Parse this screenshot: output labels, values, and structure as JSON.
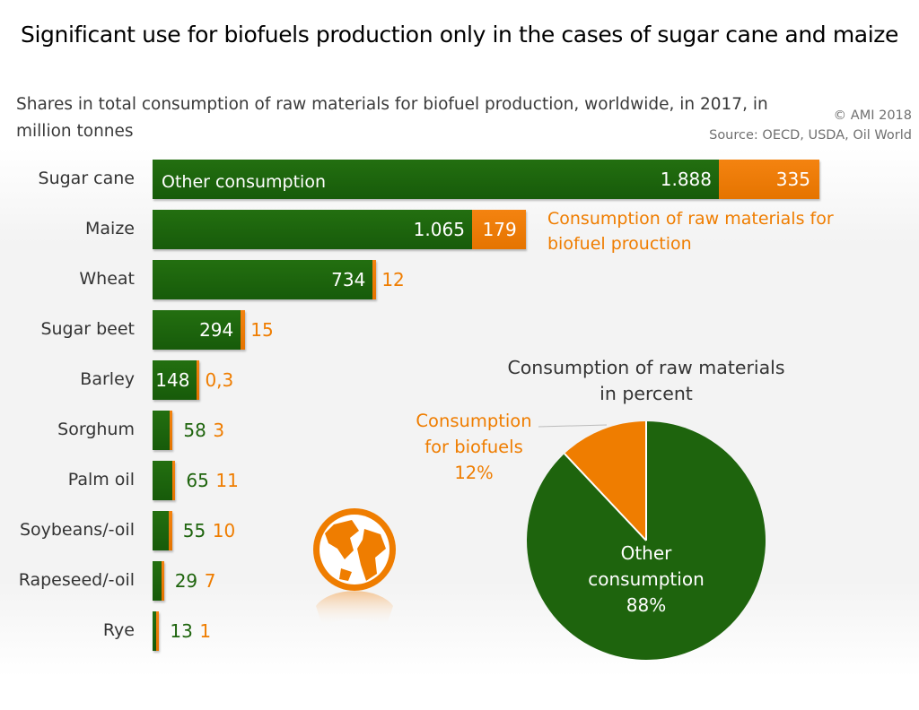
{
  "header": {
    "title": "Significant use for biofuels production only in the cases of sugar cane and maize",
    "subtitle": "Shares in total consumption of raw materials for biofuel production, worldwide, in 2017, in million tonnes",
    "credit_line1": "© AMI 2018",
    "credit_line2": "Source: OECD, USDA, Oil World"
  },
  "colors": {
    "other": "#1e640d",
    "biofuel": "#ef7d00"
  },
  "icons": {
    "globe": "globe-icon"
  },
  "chart_data": [
    {
      "type": "bar",
      "orientation": "horizontal",
      "stacked": true,
      "categories": [
        "Sugar cane",
        "Maize",
        "Wheat",
        "Sugar beet",
        "Barley",
        "Sorghum",
        "Palm oil",
        "Soybeans/-oil",
        "Rapeseed/-oil",
        "Rye"
      ],
      "series": [
        {
          "name": "Other consumption",
          "values": [
            1888,
            1065,
            734,
            294,
            148,
            58,
            65,
            55,
            29,
            13
          ],
          "labels": [
            "1.888",
            "1.065",
            "734",
            "294",
            "148",
            "58",
            "65",
            "55",
            "29",
            "13"
          ]
        },
        {
          "name": "Consumption of raw materials for biofuel prouction",
          "values": [
            335,
            179,
            12,
            15,
            0.3,
            3,
            11,
            10,
            7,
            1
          ],
          "labels": [
            "335",
            "179",
            "12",
            "15",
            "0,3",
            "3",
            "11",
            "10",
            "7",
            "1"
          ]
        }
      ],
      "inner_label": "Other consumption",
      "legend_label": "Consumption of raw materials for biofuel prouction"
    },
    {
      "type": "pie",
      "title": "Consumption of raw materials in percent",
      "slices": [
        {
          "name": "Consumption for biofuels",
          "value": 12,
          "label_lines": [
            "Consumption",
            "for biofuels",
            "12%"
          ]
        },
        {
          "name": "Other consumption",
          "value": 88,
          "label_lines": [
            "Other",
            "consumption",
            "88%"
          ]
        }
      ]
    }
  ]
}
